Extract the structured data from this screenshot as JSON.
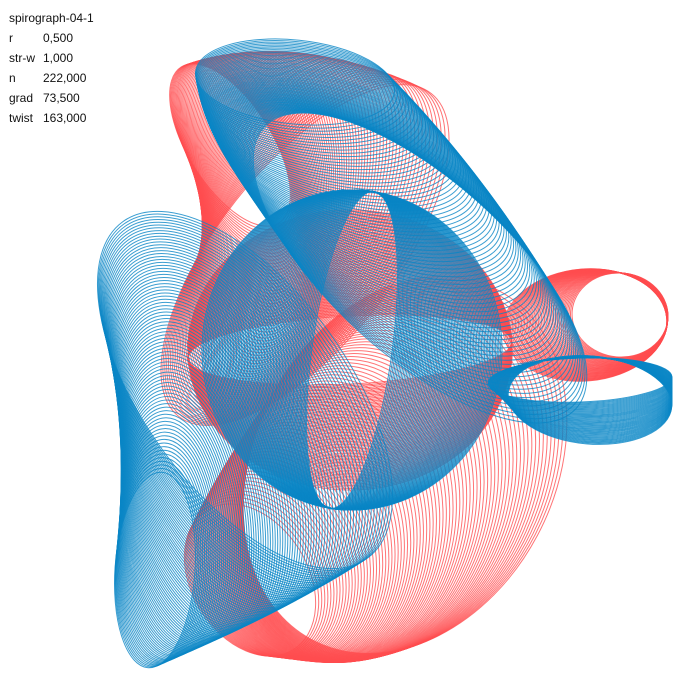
{
  "title": "spirograph-04-1",
  "params": [
    {
      "label": "r",
      "value": "0,500"
    },
    {
      "label": "str-w",
      "value": "1,000"
    },
    {
      "label": "n",
      "value": "222,000"
    },
    {
      "label": "grad",
      "value": "73,500"
    },
    {
      "label": "twist",
      "value": "163,000"
    }
  ],
  "colors": {
    "red": "#ff4d4f",
    "blue": "#0a86c6",
    "background": "#ffffff",
    "text": "#111111"
  }
}
